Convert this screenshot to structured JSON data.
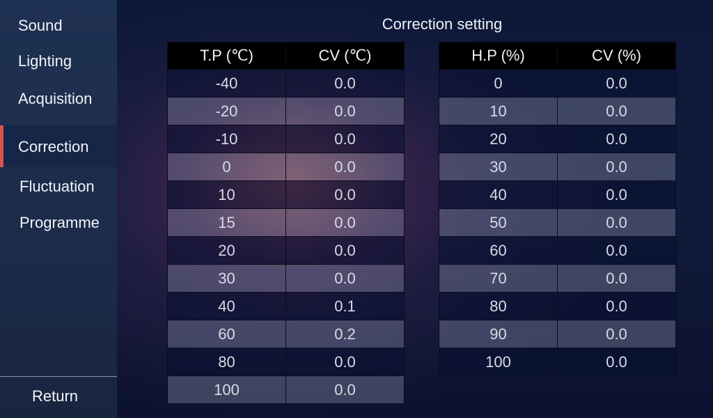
{
  "sidebar": {
    "items": [
      {
        "label": "Sound"
      },
      {
        "label": "Lighting"
      },
      {
        "label": "Acquisition"
      },
      {
        "label": "Correction",
        "selected": true
      },
      {
        "label": "Fluctuation"
      },
      {
        "label": "Programme"
      }
    ],
    "return_label": "Return"
  },
  "title": "Correction setting",
  "accent": "#d9534f",
  "temp_table": {
    "headers": [
      "T.P (℃)",
      "CV (℃)"
    ],
    "rows": [
      [
        "-40",
        "0.0"
      ],
      [
        "-20",
        "0.0"
      ],
      [
        "-10",
        "0.0"
      ],
      [
        "0",
        "0.0"
      ],
      [
        "10",
        "0.0"
      ],
      [
        "15",
        "0.0"
      ],
      [
        "20",
        "0.0"
      ],
      [
        "30",
        "0.0"
      ],
      [
        "40",
        "0.1"
      ],
      [
        "60",
        "0.2"
      ],
      [
        "80",
        "0.0"
      ],
      [
        "100",
        "0.0"
      ]
    ]
  },
  "hum_table": {
    "headers": [
      "H.P (%)",
      "CV (%)"
    ],
    "rows": [
      [
        "0",
        "0.0"
      ],
      [
        "10",
        "0.0"
      ],
      [
        "20",
        "0.0"
      ],
      [
        "30",
        "0.0"
      ],
      [
        "40",
        "0.0"
      ],
      [
        "50",
        "0.0"
      ],
      [
        "60",
        "0.0"
      ],
      [
        "70",
        "0.0"
      ],
      [
        "80",
        "0.0"
      ],
      [
        "90",
        "0.0"
      ],
      [
        "100",
        "0.0"
      ]
    ]
  }
}
